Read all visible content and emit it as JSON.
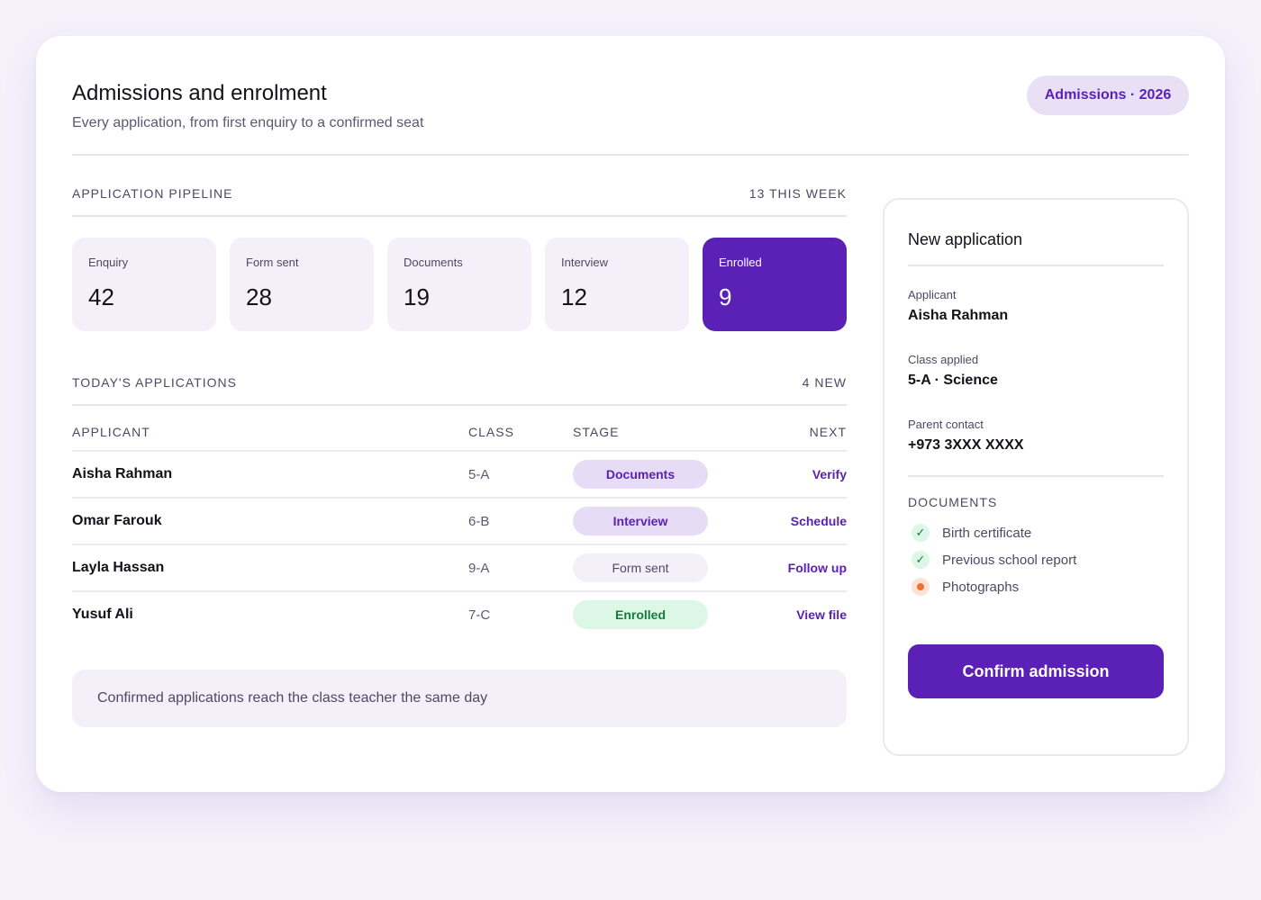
{
  "header": {
    "title": "Admissions and enrolment",
    "subtitle": "Every application, from first enquiry to a confirmed seat",
    "badge": "Admissions · 2026"
  },
  "pipeline": {
    "heading": "APPLICATION PIPELINE",
    "summary": "13 THIS WEEK",
    "stages": [
      {
        "label": "Enquiry",
        "count": "42"
      },
      {
        "label": "Form sent",
        "count": "28"
      },
      {
        "label": "Documents",
        "count": "19"
      },
      {
        "label": "Interview",
        "count": "12"
      },
      {
        "label": "Enrolled",
        "count": "9"
      }
    ]
  },
  "today": {
    "heading": "TODAY'S APPLICATIONS",
    "summary": "4 NEW",
    "columns": {
      "applicant": "APPLICANT",
      "class": "CLASS",
      "stage": "STAGE",
      "next": "NEXT"
    },
    "rows": [
      {
        "name": "Aisha Rahman",
        "class": "5-A",
        "stage": "Documents",
        "next": "Verify"
      },
      {
        "name": "Omar Farouk",
        "class": "6-B",
        "stage": "Interview",
        "next": "Schedule"
      },
      {
        "name": "Layla Hassan",
        "class": "9-A",
        "stage": "Form sent",
        "next": "Follow up"
      },
      {
        "name": "Yusuf Ali",
        "class": "7-C",
        "stage": "Enrolled",
        "next": "View file"
      }
    ]
  },
  "note": "Confirmed applications reach the class teacher the same day",
  "panel": {
    "title": "New application",
    "applicant_label": "Applicant",
    "applicant_value": "Aisha Rahman",
    "class_label": "Class applied",
    "class_value": "5-A · Science",
    "contact_label": "Parent contact",
    "contact_value": "+973 3XXX XXXX",
    "docs_heading": "DOCUMENTS",
    "docs": [
      {
        "label": "Birth certificate",
        "status": "received"
      },
      {
        "label": "Previous school report",
        "status": "received"
      },
      {
        "label": "Photographs",
        "status": "pending"
      }
    ],
    "confirm_label": "Confirm admission"
  },
  "colors": {
    "accent": "#5b21b6",
    "accent_soft": "#e6dcf5",
    "success": "#177b3e",
    "pending": "#f0702d"
  }
}
